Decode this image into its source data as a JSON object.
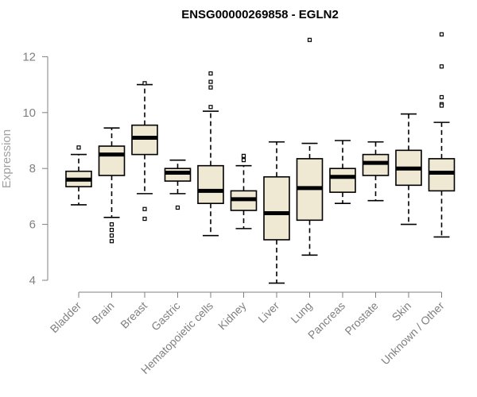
{
  "chart_data": {
    "type": "boxplot",
    "title": "ENSG00000269858 - EGLN2",
    "xlabel": "",
    "ylabel": "Expression",
    "ylim": [
      4,
      13
    ],
    "yticks": [
      4,
      6,
      8,
      10,
      12
    ],
    "grid": false,
    "legend": "none",
    "colors": {
      "box_fill": "#efe8d2",
      "stroke": "#000000",
      "axis": "#808080"
    },
    "categories": [
      "Bladder",
      "Brain",
      "Breast",
      "Gastric",
      "Hematopoietic cells",
      "Kidney",
      "Liver",
      "Lung",
      "Pancreas",
      "Prostate",
      "Skin",
      "Unknown / Other"
    ],
    "boxes": [
      {
        "category": "Bladder",
        "whisker_low": 6.7,
        "q1": 7.35,
        "median": 7.6,
        "q3": 7.9,
        "whisker_high": 8.5,
        "outliers": [
          8.75
        ]
      },
      {
        "category": "Brain",
        "whisker_low": 6.25,
        "q1": 7.75,
        "median": 8.5,
        "q3": 8.8,
        "whisker_high": 9.45,
        "outliers": [
          6.0,
          5.8,
          5.6,
          5.4
        ]
      },
      {
        "category": "Breast",
        "whisker_low": 7.1,
        "q1": 8.5,
        "median": 9.1,
        "q3": 9.55,
        "whisker_high": 11.0,
        "outliers": [
          11.05,
          6.55,
          6.2
        ]
      },
      {
        "category": "Gastric",
        "whisker_low": 7.1,
        "q1": 7.55,
        "median": 7.85,
        "q3": 8.0,
        "whisker_high": 8.3,
        "outliers": [
          6.6
        ]
      },
      {
        "category": "Hematopoietic cells",
        "whisker_low": 5.6,
        "q1": 6.75,
        "median": 7.2,
        "q3": 8.1,
        "whisker_high": 10.05,
        "outliers": [
          11.4,
          11.1,
          10.9,
          10.2
        ]
      },
      {
        "category": "Kidney",
        "whisker_low": 5.85,
        "q1": 6.5,
        "median": 6.9,
        "q3": 7.2,
        "whisker_high": 8.1,
        "outliers": [
          8.45,
          8.3
        ]
      },
      {
        "category": "Liver",
        "whisker_low": 3.9,
        "q1": 5.45,
        "median": 6.4,
        "q3": 7.7,
        "whisker_high": 8.95,
        "outliers": []
      },
      {
        "category": "Lung",
        "whisker_low": 4.9,
        "q1": 6.15,
        "median": 7.3,
        "q3": 8.35,
        "whisker_high": 8.9,
        "outliers": [
          12.6
        ]
      },
      {
        "category": "Pancreas",
        "whisker_low": 6.75,
        "q1": 7.15,
        "median": 7.7,
        "q3": 8.0,
        "whisker_high": 9.0,
        "outliers": []
      },
      {
        "category": "Prostate",
        "whisker_low": 6.85,
        "q1": 7.75,
        "median": 8.2,
        "q3": 8.5,
        "whisker_high": 8.95,
        "outliers": []
      },
      {
        "category": "Skin",
        "whisker_low": 6.0,
        "q1": 7.4,
        "median": 8.0,
        "q3": 8.65,
        "whisker_high": 9.95,
        "outliers": []
      },
      {
        "category": "Unknown / Other",
        "whisker_low": 5.55,
        "q1": 7.2,
        "median": 7.85,
        "q3": 8.35,
        "whisker_high": 9.65,
        "outliers": [
          12.8,
          11.65,
          10.55,
          10.3,
          10.25
        ]
      }
    ]
  }
}
